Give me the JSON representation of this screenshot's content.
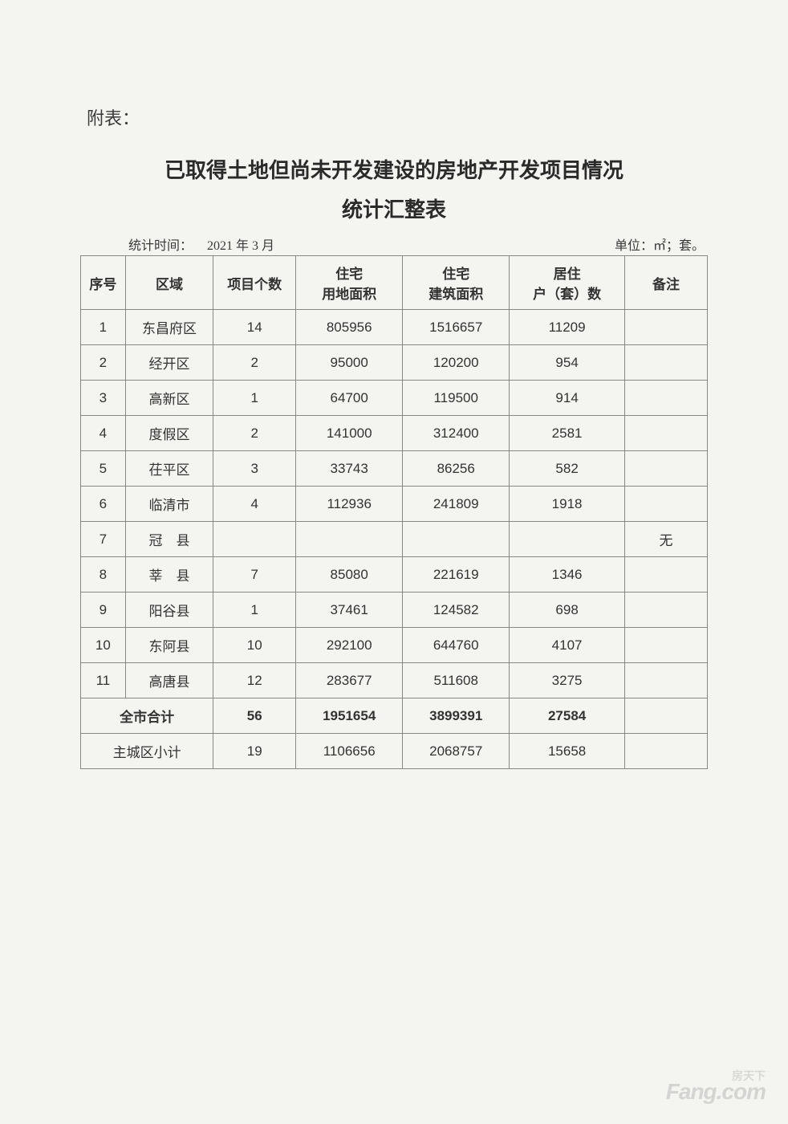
{
  "page_label": "附表：",
  "title_line1": "已取得土地但尚未开发建设的房地产开发项目情况",
  "title_line2": "统计汇整表",
  "meta": {
    "time_label": "统计时间：",
    "time_value": "2021 年 3 月",
    "unit_label": "单位：㎡；套。"
  },
  "table": {
    "headers": {
      "idx": "序号",
      "region": "区域",
      "count": "项目个数",
      "land": "住宅\n用地面积",
      "build": "住宅\n建筑面积",
      "units": "居住\n户（套）数",
      "remark": "备注"
    },
    "rows": [
      {
        "idx": "1",
        "region": "东昌府区",
        "count": "14",
        "land": "805956",
        "build": "1516657",
        "units": "11209",
        "remark": ""
      },
      {
        "idx": "2",
        "region": "经开区",
        "count": "2",
        "land": "95000",
        "build": "120200",
        "units": "954",
        "remark": ""
      },
      {
        "idx": "3",
        "region": "高新区",
        "count": "1",
        "land": "64700",
        "build": "119500",
        "units": "914",
        "remark": ""
      },
      {
        "idx": "4",
        "region": "度假区",
        "count": "2",
        "land": "141000",
        "build": "312400",
        "units": "2581",
        "remark": ""
      },
      {
        "idx": "5",
        "region": "茌平区",
        "count": "3",
        "land": "33743",
        "build": "86256",
        "units": "582",
        "remark": ""
      },
      {
        "idx": "6",
        "region": "临清市",
        "count": "4",
        "land": "112936",
        "build": "241809",
        "units": "1918",
        "remark": ""
      },
      {
        "idx": "7",
        "region": "冠　县",
        "count": "",
        "land": "",
        "build": "",
        "units": "",
        "remark": "无"
      },
      {
        "idx": "8",
        "region": "莘　县",
        "count": "7",
        "land": "85080",
        "build": "221619",
        "units": "1346",
        "remark": ""
      },
      {
        "idx": "9",
        "region": "阳谷县",
        "count": "1",
        "land": "37461",
        "build": "124582",
        "units": "698",
        "remark": ""
      },
      {
        "idx": "10",
        "region": "东阿县",
        "count": "10",
        "land": "292100",
        "build": "644760",
        "units": "4107",
        "remark": ""
      },
      {
        "idx": "11",
        "region": "高唐县",
        "count": "12",
        "land": "283677",
        "build": "511608",
        "units": "3275",
        "remark": ""
      }
    ],
    "total": {
      "label": "全市合计",
      "count": "56",
      "land": "1951654",
      "build": "3899391",
      "units": "27584",
      "remark": ""
    },
    "subtotal": {
      "label": "主城区小计",
      "count": "19",
      "land": "1106656",
      "build": "2068757",
      "units": "15658",
      "remark": ""
    }
  },
  "watermark": {
    "small": "房天下",
    "main": "Fang.com"
  },
  "style": {
    "background_color": "#f4f4f1",
    "border_color": "#888888",
    "text_color": "#333333",
    "title_fontsize": 26,
    "cell_fontsize": 17
  }
}
